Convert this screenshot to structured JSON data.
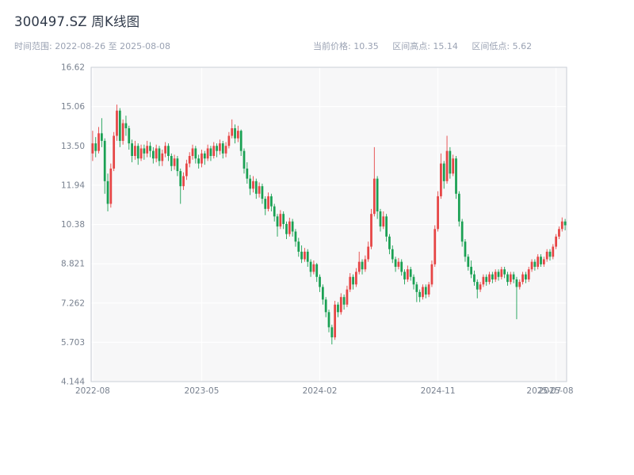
{
  "header": {
    "title": "300497.SZ 周K线图",
    "time_range": "时间范围: 2022-08-26 至 2025-08-08",
    "stats": [
      "当前价格: 10.35",
      "区间高点: 15.14",
      "区间低点: 5.62"
    ]
  },
  "chart_data": {
    "type": "candlestick",
    "title": "300497.SZ 周K线图",
    "symbol": "300497.SZ",
    "interval": "weekly",
    "date_range": {
      "start": "2022-08-26",
      "end": "2025-08-08"
    },
    "current_price": 10.35,
    "range_high": 15.14,
    "range_low": 5.62,
    "ylim": [
      4.144,
      16.62
    ],
    "y_ticks": [
      {
        "value": 4.144,
        "label": "4.144"
      },
      {
        "value": 5.703,
        "label": "5.703"
      },
      {
        "value": 7.262,
        "label": "7.262"
      },
      {
        "value": 8.821,
        "label": "8.821"
      },
      {
        "value": 10.38,
        "label": "10.38"
      },
      {
        "value": 11.94,
        "label": "11.94"
      },
      {
        "value": 13.5,
        "label": "13.50"
      },
      {
        "value": 15.06,
        "label": "15.06"
      },
      {
        "value": 16.62,
        "label": "16.62"
      }
    ],
    "x_ticks": [
      {
        "week": 0,
        "label": "2022-08",
        "grid": true
      },
      {
        "week": 36,
        "label": "2023-05",
        "grid": true
      },
      {
        "week": 75,
        "label": "2024-02",
        "grid": true
      },
      {
        "week": 114,
        "label": "2024-11",
        "grid": true
      },
      {
        "week": 149,
        "label": "2025-07",
        "grid": false
      },
      {
        "week": 153,
        "label": "2025-08",
        "grid": true
      }
    ],
    "up_color": "#e64545",
    "down_color": "#1aa053",
    "plot_bg": "#f7f7f8",
    "grid_color": "#ffffff",
    "frame_color": "#c9ced6",
    "ohlc": [
      [
        13.2,
        14.1,
        12.9,
        13.6
      ],
      [
        13.6,
        13.85,
        13.05,
        13.3
      ],
      [
        13.3,
        14.25,
        13.2,
        14.0
      ],
      [
        14.0,
        14.6,
        13.45,
        13.7
      ],
      [
        13.7,
        13.8,
        11.6,
        12.1
      ],
      [
        12.1,
        12.4,
        10.9,
        11.2
      ],
      [
        11.2,
        12.8,
        11.05,
        12.6
      ],
      [
        12.6,
        14.05,
        12.5,
        13.9
      ],
      [
        13.9,
        15.14,
        13.7,
        14.9
      ],
      [
        14.9,
        15.0,
        13.45,
        13.7
      ],
      [
        13.7,
        14.55,
        13.55,
        14.4
      ],
      [
        14.4,
        14.7,
        13.9,
        14.2
      ],
      [
        14.2,
        14.3,
        13.35,
        13.6
      ],
      [
        13.6,
        13.75,
        12.85,
        13.1
      ],
      [
        13.1,
        13.7,
        12.95,
        13.5
      ],
      [
        13.5,
        13.6,
        12.75,
        13.0
      ],
      [
        13.0,
        13.55,
        12.9,
        13.4
      ],
      [
        13.4,
        13.55,
        12.95,
        13.2
      ],
      [
        13.2,
        13.7,
        13.05,
        13.5
      ],
      [
        13.5,
        13.65,
        13.05,
        13.3
      ],
      [
        13.3,
        13.45,
        12.8,
        13.0
      ],
      [
        13.0,
        13.55,
        12.85,
        13.4
      ],
      [
        13.4,
        13.5,
        12.7,
        12.9
      ],
      [
        12.9,
        13.35,
        12.7,
        13.2
      ],
      [
        13.2,
        13.65,
        13.05,
        13.5
      ],
      [
        13.5,
        13.6,
        12.9,
        13.1
      ],
      [
        13.1,
        13.2,
        12.5,
        12.7
      ],
      [
        12.7,
        13.15,
        12.55,
        13.0
      ],
      [
        13.0,
        13.1,
        12.3,
        12.5
      ],
      [
        12.5,
        12.6,
        11.2,
        11.9
      ],
      [
        11.9,
        12.45,
        11.75,
        12.3
      ],
      [
        12.3,
        12.95,
        12.15,
        12.8
      ],
      [
        12.8,
        13.25,
        12.65,
        13.1
      ],
      [
        13.1,
        13.55,
        12.95,
        13.4
      ],
      [
        13.4,
        13.5,
        12.8,
        13.0
      ],
      [
        13.0,
        13.15,
        12.6,
        12.8
      ],
      [
        12.8,
        13.35,
        12.65,
        13.2
      ],
      [
        13.2,
        13.3,
        12.75,
        13.0
      ],
      [
        13.0,
        13.55,
        12.9,
        13.4
      ],
      [
        13.4,
        13.5,
        12.9,
        13.1
      ],
      [
        13.1,
        13.65,
        13.0,
        13.5
      ],
      [
        13.5,
        13.6,
        13.05,
        13.3
      ],
      [
        13.3,
        13.75,
        13.15,
        13.6
      ],
      [
        13.6,
        13.7,
        13.0,
        13.2
      ],
      [
        13.2,
        13.65,
        13.05,
        13.5
      ],
      [
        13.5,
        14.05,
        13.4,
        13.9
      ],
      [
        13.9,
        14.55,
        13.8,
        14.2
      ],
      [
        14.2,
        14.35,
        13.6,
        13.8
      ],
      [
        13.8,
        14.3,
        13.65,
        14.1
      ],
      [
        14.1,
        14.15,
        13.1,
        13.3
      ],
      [
        13.3,
        13.4,
        12.4,
        12.6
      ],
      [
        12.6,
        12.85,
        12.0,
        12.2
      ],
      [
        12.2,
        12.35,
        11.55,
        11.8
      ],
      [
        11.8,
        12.3,
        11.65,
        12.1
      ],
      [
        12.1,
        12.2,
        11.4,
        11.6
      ],
      [
        11.6,
        12.05,
        11.45,
        11.9
      ],
      [
        11.9,
        12.0,
        11.2,
        11.4
      ],
      [
        11.4,
        11.5,
        10.75,
        11.0
      ],
      [
        11.0,
        11.65,
        10.9,
        11.5
      ],
      [
        11.5,
        11.6,
        10.9,
        11.1
      ],
      [
        11.1,
        11.2,
        10.5,
        10.7
      ],
      [
        10.7,
        10.8,
        9.9,
        10.3
      ],
      [
        10.3,
        10.95,
        10.2,
        10.8
      ],
      [
        10.8,
        10.9,
        10.2,
        10.4
      ],
      [
        10.4,
        10.5,
        9.8,
        10.0
      ],
      [
        10.0,
        10.65,
        9.9,
        10.5
      ],
      [
        10.5,
        10.6,
        9.9,
        10.1
      ],
      [
        10.1,
        10.2,
        9.5,
        9.7
      ],
      [
        9.7,
        9.85,
        9.1,
        9.3
      ],
      [
        9.3,
        9.55,
        8.85,
        9.0
      ],
      [
        9.0,
        9.45,
        8.9,
        9.3
      ],
      [
        9.3,
        9.4,
        8.7,
        8.9
      ],
      [
        8.9,
        9.0,
        8.3,
        8.5
      ],
      [
        8.5,
        8.95,
        8.4,
        8.8
      ],
      [
        8.8,
        8.85,
        8.1,
        8.3
      ],
      [
        8.3,
        8.4,
        7.7,
        7.9
      ],
      [
        7.9,
        8.0,
        7.2,
        7.4
      ],
      [
        7.4,
        7.5,
        6.7,
        6.9
      ],
      [
        6.9,
        7.0,
        6.1,
        6.3
      ],
      [
        6.3,
        6.4,
        5.62,
        5.9
      ],
      [
        5.9,
        7.35,
        5.8,
        7.2
      ],
      [
        7.2,
        7.3,
        6.7,
        6.9
      ],
      [
        6.9,
        7.65,
        6.8,
        7.5
      ],
      [
        7.5,
        7.6,
        7.0,
        7.2
      ],
      [
        7.2,
        7.95,
        7.1,
        7.8
      ],
      [
        7.8,
        8.45,
        7.7,
        8.3
      ],
      [
        8.3,
        8.4,
        7.8,
        8.0
      ],
      [
        8.0,
        8.65,
        7.9,
        8.5
      ],
      [
        8.5,
        9.3,
        8.4,
        8.9
      ],
      [
        8.9,
        9.0,
        8.4,
        8.6
      ],
      [
        8.6,
        9.15,
        8.5,
        9.0
      ],
      [
        9.0,
        9.7,
        8.9,
        9.5
      ],
      [
        9.5,
        11.0,
        9.4,
        10.8
      ],
      [
        10.8,
        13.45,
        10.7,
        12.2
      ],
      [
        12.2,
        12.3,
        10.6,
        10.9
      ],
      [
        10.9,
        11.0,
        10.1,
        10.3
      ],
      [
        10.3,
        10.9,
        10.2,
        10.7
      ],
      [
        10.7,
        10.8,
        9.7,
        9.9
      ],
      [
        9.9,
        10.0,
        9.2,
        9.4
      ],
      [
        9.4,
        9.55,
        8.85,
        9.0
      ],
      [
        9.0,
        9.1,
        8.5,
        8.7
      ],
      [
        8.7,
        9.05,
        8.6,
        8.9
      ],
      [
        8.9,
        9.0,
        8.35,
        8.5
      ],
      [
        8.5,
        8.6,
        8.0,
        8.2
      ],
      [
        8.2,
        8.75,
        8.1,
        8.6
      ],
      [
        8.6,
        8.7,
        8.15,
        8.3
      ],
      [
        8.3,
        8.4,
        7.8,
        8.0
      ],
      [
        8.0,
        8.1,
        7.3,
        7.7
      ],
      [
        7.7,
        7.8,
        7.3,
        7.5
      ],
      [
        7.5,
        8.0,
        7.4,
        7.9
      ],
      [
        7.9,
        8.0,
        7.45,
        7.6
      ],
      [
        7.6,
        8.1,
        7.5,
        8.0
      ],
      [
        8.0,
        8.95,
        7.9,
        8.8
      ],
      [
        8.8,
        10.35,
        8.7,
        10.2
      ],
      [
        10.2,
        11.7,
        10.1,
        11.5
      ],
      [
        11.5,
        13.2,
        11.4,
        12.8
      ],
      [
        12.8,
        12.9,
        11.8,
        12.1
      ],
      [
        12.1,
        13.9,
        12.0,
        13.3
      ],
      [
        13.3,
        13.45,
        12.2,
        12.4
      ],
      [
        12.4,
        13.15,
        12.3,
        13.0
      ],
      [
        13.0,
        13.1,
        11.4,
        11.6
      ],
      [
        11.6,
        11.7,
        10.3,
        10.5
      ],
      [
        10.5,
        10.6,
        9.5,
        9.7
      ],
      [
        9.7,
        9.8,
        8.9,
        9.1
      ],
      [
        9.1,
        9.2,
        8.55,
        8.7
      ],
      [
        8.7,
        8.95,
        8.25,
        8.4
      ],
      [
        8.4,
        8.55,
        7.95,
        8.1
      ],
      [
        8.1,
        8.2,
        7.45,
        7.8
      ],
      [
        7.8,
        8.1,
        7.7,
        8.0
      ],
      [
        8.0,
        8.4,
        7.9,
        8.3
      ],
      [
        8.3,
        8.4,
        7.95,
        8.1
      ],
      [
        8.1,
        8.5,
        8.0,
        8.4
      ],
      [
        8.4,
        8.5,
        8.05,
        8.2
      ],
      [
        8.2,
        8.6,
        8.1,
        8.5
      ],
      [
        8.5,
        8.6,
        8.15,
        8.3
      ],
      [
        8.3,
        8.7,
        8.2,
        8.6
      ],
      [
        8.6,
        8.7,
        8.25,
        8.4
      ],
      [
        8.4,
        8.5,
        7.95,
        8.1
      ],
      [
        8.1,
        8.5,
        8.0,
        8.4
      ],
      [
        8.4,
        8.5,
        8.05,
        8.2
      ],
      [
        8.2,
        8.3,
        6.62,
        7.9
      ],
      [
        7.9,
        8.2,
        7.8,
        8.1
      ],
      [
        8.1,
        8.5,
        8.0,
        8.4
      ],
      [
        8.4,
        8.5,
        8.05,
        8.2
      ],
      [
        8.2,
        8.7,
        8.1,
        8.6
      ],
      [
        8.6,
        9.0,
        8.5,
        8.9
      ],
      [
        8.9,
        9.0,
        8.55,
        8.7
      ],
      [
        8.7,
        9.2,
        8.6,
        9.1
      ],
      [
        9.1,
        9.2,
        8.7,
        8.8
      ],
      [
        8.8,
        9.1,
        8.7,
        9.0
      ],
      [
        9.0,
        9.4,
        8.9,
        9.3
      ],
      [
        9.3,
        9.4,
        8.95,
        9.1
      ],
      [
        9.1,
        9.6,
        9.0,
        9.5
      ],
      [
        9.5,
        10.0,
        9.4,
        9.9
      ],
      [
        9.9,
        10.3,
        9.8,
        10.2
      ],
      [
        10.2,
        10.66,
        10.1,
        10.5
      ],
      [
        10.5,
        10.6,
        10.15,
        10.35
      ]
    ]
  }
}
